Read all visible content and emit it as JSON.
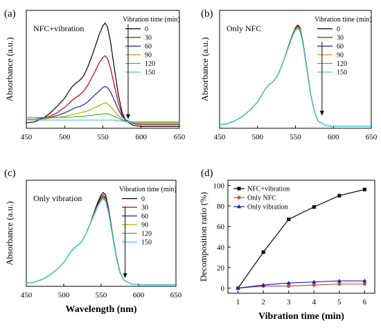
{
  "chart_data": [
    {
      "panel_label": "(a)",
      "type": "line",
      "annotation": "NFC+vibration",
      "legend_title": "Vibration time (min)",
      "ylabel": "Absorbance (a.u.)",
      "xlabel": "",
      "xlim": [
        450,
        650
      ],
      "x_ticks": [
        450,
        500,
        550,
        600,
        650
      ],
      "ylim": [
        0,
        1.3
      ],
      "y_ticks": [],
      "arrow": {
        "x": 583,
        "y_from": 1.15,
        "y_to": 0.1
      },
      "x": [
        450,
        460,
        470,
        480,
        490,
        500,
        505,
        510,
        515,
        520,
        525,
        530,
        535,
        540,
        545,
        550,
        553,
        556,
        560,
        565,
        570,
        575,
        580,
        590,
        600,
        610,
        620,
        650
      ],
      "series": [
        {
          "name": "0",
          "color": "#000000",
          "values": [
            0.06,
            0.07,
            0.1,
            0.16,
            0.24,
            0.33,
            0.4,
            0.46,
            0.5,
            0.53,
            0.58,
            0.67,
            0.78,
            0.9,
            1.03,
            1.13,
            1.16,
            1.12,
            0.95,
            0.66,
            0.38,
            0.18,
            0.08,
            0.03,
            0.02,
            0.02,
            0.02,
            0.02
          ]
        },
        {
          "name": "30",
          "color": "#c00000",
          "values": [
            0.1,
            0.1,
            0.11,
            0.13,
            0.17,
            0.23,
            0.27,
            0.31,
            0.34,
            0.37,
            0.41,
            0.47,
            0.55,
            0.63,
            0.72,
            0.78,
            0.8,
            0.77,
            0.66,
            0.47,
            0.29,
            0.15,
            0.09,
            0.05,
            0.04,
            0.04,
            0.04,
            0.04
          ]
        },
        {
          "name": "60",
          "color": "#2020b0",
          "values": [
            0.1,
            0.1,
            0.11,
            0.12,
            0.14,
            0.17,
            0.19,
            0.21,
            0.23,
            0.24,
            0.26,
            0.29,
            0.33,
            0.37,
            0.41,
            0.45,
            0.46,
            0.45,
            0.4,
            0.31,
            0.21,
            0.13,
            0.09,
            0.06,
            0.05,
            0.05,
            0.05,
            0.05
          ]
        },
        {
          "name": "90",
          "color": "#c8a000",
          "values": [
            0.1,
            0.1,
            0.1,
            0.11,
            0.12,
            0.13,
            0.14,
            0.15,
            0.16,
            0.17,
            0.18,
            0.19,
            0.21,
            0.23,
            0.25,
            0.27,
            0.28,
            0.27,
            0.24,
            0.19,
            0.14,
            0.1,
            0.08,
            0.06,
            0.06,
            0.06,
            0.06,
            0.06
          ]
        },
        {
          "name": "120",
          "color": "#30c030",
          "values": [
            0.12,
            0.12,
            0.12,
            0.12,
            0.12,
            0.12,
            0.12,
            0.12,
            0.13,
            0.13,
            0.13,
            0.14,
            0.14,
            0.15,
            0.15,
            0.16,
            0.16,
            0.16,
            0.15,
            0.13,
            0.11,
            0.09,
            0.08,
            0.07,
            0.07,
            0.07,
            0.07,
            0.07
          ]
        },
        {
          "name": "150",
          "color": "#40c8e8",
          "values": [
            0.09,
            0.09,
            0.09,
            0.09,
            0.09,
            0.09,
            0.09,
            0.09,
            0.09,
            0.09,
            0.09,
            0.09,
            0.09,
            0.09,
            0.09,
            0.09,
            0.09,
            0.09,
            0.09,
            0.09,
            0.08,
            0.08,
            0.07,
            0.06,
            0.05,
            0.05,
            0.05,
            0.05
          ]
        }
      ]
    },
    {
      "panel_label": "(b)",
      "type": "line",
      "annotation": "Only NFC",
      "legend_title": "Vibration time (min)",
      "ylabel": "Absorbance (a.u.)",
      "xlabel": "",
      "xlim": [
        450,
        650
      ],
      "x_ticks": [
        450,
        500,
        550,
        600,
        650
      ],
      "ylim": [
        0,
        1.3
      ],
      "y_ticks": [],
      "arrow": {
        "x": 585,
        "y_from": 0.95,
        "y_to": 0.14
      },
      "x": [
        450,
        460,
        470,
        480,
        490,
        500,
        505,
        510,
        515,
        520,
        525,
        530,
        535,
        540,
        545,
        550,
        553,
        556,
        560,
        565,
        570,
        575,
        580,
        590,
        600,
        610,
        620,
        650
      ],
      "series": [
        {
          "name": "0",
          "color": "#000000",
          "values": [
            0.04,
            0.05,
            0.08,
            0.13,
            0.2,
            0.29,
            0.36,
            0.43,
            0.48,
            0.51,
            0.56,
            0.65,
            0.76,
            0.88,
            1.0,
            1.1,
            1.13,
            1.1,
            0.94,
            0.66,
            0.38,
            0.18,
            0.08,
            0.03,
            0.02,
            0.02,
            0.02,
            0.02
          ]
        },
        {
          "name": "30",
          "color": "#c00000",
          "values": [
            0.04,
            0.05,
            0.08,
            0.13,
            0.2,
            0.29,
            0.36,
            0.43,
            0.48,
            0.51,
            0.56,
            0.65,
            0.76,
            0.89,
            1.01,
            1.11,
            1.14,
            1.11,
            0.95,
            0.67,
            0.38,
            0.18,
            0.08,
            0.03,
            0.02,
            0.02,
            0.02,
            0.02
          ]
        },
        {
          "name": "60",
          "color": "#2020b0",
          "values": [
            0.04,
            0.05,
            0.08,
            0.13,
            0.2,
            0.29,
            0.36,
            0.43,
            0.48,
            0.51,
            0.56,
            0.65,
            0.76,
            0.88,
            1.0,
            1.1,
            1.12,
            1.09,
            0.94,
            0.66,
            0.38,
            0.18,
            0.08,
            0.03,
            0.02,
            0.02,
            0.02,
            0.02
          ]
        },
        {
          "name": "90",
          "color": "#c8a000",
          "values": [
            0.04,
            0.05,
            0.08,
            0.13,
            0.2,
            0.29,
            0.36,
            0.43,
            0.48,
            0.51,
            0.56,
            0.65,
            0.76,
            0.88,
            1.0,
            1.09,
            1.12,
            1.09,
            0.93,
            0.65,
            0.38,
            0.18,
            0.08,
            0.03,
            0.02,
            0.02,
            0.02,
            0.02
          ]
        },
        {
          "name": "120",
          "color": "#30c030",
          "values": [
            0.04,
            0.05,
            0.08,
            0.13,
            0.2,
            0.29,
            0.36,
            0.43,
            0.48,
            0.51,
            0.56,
            0.65,
            0.76,
            0.88,
            0.99,
            1.09,
            1.11,
            1.08,
            0.93,
            0.65,
            0.37,
            0.18,
            0.08,
            0.03,
            0.02,
            0.02,
            0.02,
            0.02
          ]
        },
        {
          "name": "150",
          "color": "#40c8e8",
          "values": [
            0.04,
            0.05,
            0.08,
            0.13,
            0.2,
            0.29,
            0.36,
            0.43,
            0.48,
            0.51,
            0.56,
            0.65,
            0.76,
            0.87,
            0.99,
            1.08,
            1.1,
            1.07,
            0.92,
            0.65,
            0.37,
            0.18,
            0.08,
            0.03,
            0.02,
            0.02,
            0.02,
            0.02
          ]
        }
      ]
    },
    {
      "panel_label": "(c)",
      "type": "line",
      "annotation": "Only vibration",
      "legend_title": "Vibration time (min)",
      "ylabel": "Absorbance (a.u.)",
      "xlabel": "Wavelength (nm)",
      "xlim": [
        450,
        650
      ],
      "x_ticks": [
        450,
        500,
        550,
        600,
        650
      ],
      "ylim": [
        0,
        1.3
      ],
      "y_ticks": [],
      "arrow": {
        "x": 582,
        "y_from": 0.98,
        "y_to": 0.1
      },
      "x": [
        450,
        460,
        470,
        480,
        490,
        500,
        505,
        510,
        515,
        520,
        525,
        530,
        535,
        540,
        545,
        550,
        553,
        556,
        560,
        565,
        570,
        575,
        580,
        590,
        600,
        610,
        620,
        650
      ],
      "series": [
        {
          "name": "0",
          "color": "#000000",
          "values": [
            0.04,
            0.05,
            0.08,
            0.13,
            0.2,
            0.29,
            0.36,
            0.43,
            0.48,
            0.51,
            0.56,
            0.65,
            0.76,
            0.89,
            1.02,
            1.12,
            1.15,
            1.12,
            0.95,
            0.66,
            0.38,
            0.18,
            0.08,
            0.03,
            0.02,
            0.02,
            0.02,
            0.02
          ]
        },
        {
          "name": "30",
          "color": "#c00000",
          "values": [
            0.04,
            0.05,
            0.08,
            0.13,
            0.2,
            0.29,
            0.36,
            0.43,
            0.48,
            0.51,
            0.56,
            0.65,
            0.76,
            0.88,
            1.0,
            1.1,
            1.12,
            1.09,
            0.93,
            0.65,
            0.38,
            0.18,
            0.08,
            0.03,
            0.02,
            0.02,
            0.02,
            0.02
          ]
        },
        {
          "name": "60",
          "color": "#2020b0",
          "values": [
            0.04,
            0.05,
            0.08,
            0.13,
            0.2,
            0.29,
            0.36,
            0.43,
            0.48,
            0.51,
            0.56,
            0.65,
            0.76,
            0.87,
            0.99,
            1.08,
            1.1,
            1.07,
            0.92,
            0.64,
            0.37,
            0.18,
            0.08,
            0.03,
            0.02,
            0.02,
            0.02,
            0.02
          ]
        },
        {
          "name": "90",
          "color": "#c8a000",
          "values": [
            0.04,
            0.05,
            0.08,
            0.13,
            0.2,
            0.29,
            0.36,
            0.43,
            0.48,
            0.51,
            0.56,
            0.65,
            0.76,
            0.87,
            0.98,
            1.07,
            1.09,
            1.06,
            0.91,
            0.64,
            0.37,
            0.18,
            0.08,
            0.03,
            0.02,
            0.02,
            0.02,
            0.02
          ]
        },
        {
          "name": "120",
          "color": "#30c030",
          "values": [
            0.04,
            0.05,
            0.08,
            0.13,
            0.2,
            0.29,
            0.36,
            0.43,
            0.48,
            0.51,
            0.56,
            0.65,
            0.76,
            0.86,
            0.97,
            1.06,
            1.08,
            1.05,
            0.9,
            0.63,
            0.36,
            0.17,
            0.08,
            0.03,
            0.02,
            0.02,
            0.02,
            0.02
          ]
        },
        {
          "name": "150",
          "color": "#40c8e8",
          "values": [
            0.04,
            0.05,
            0.08,
            0.13,
            0.2,
            0.29,
            0.36,
            0.43,
            0.48,
            0.51,
            0.56,
            0.65,
            0.76,
            0.86,
            0.97,
            1.05,
            1.07,
            1.04,
            0.89,
            0.63,
            0.36,
            0.17,
            0.08,
            0.03,
            0.02,
            0.02,
            0.02,
            0.02
          ]
        }
      ]
    },
    {
      "panel_label": "(d)",
      "type": "line",
      "annotation": "",
      "ylabel": "Decomposition ratio (%)",
      "xlabel": "Vibration time (min)",
      "xlim": [
        0.6,
        6.4
      ],
      "x_ticks": [
        1,
        2,
        3,
        4,
        5,
        6
      ],
      "ylim": [
        -5,
        105
      ],
      "y_ticks": [
        0,
        20,
        40,
        60,
        80,
        100
      ],
      "x": [
        1,
        2,
        3,
        4,
        5,
        6
      ],
      "series": [
        {
          "name": "NFC+vibration",
          "color": "#000000",
          "marker": "square",
          "values": [
            0,
            35,
            67,
            79,
            90,
            96
          ]
        },
        {
          "name": "Only NFC",
          "color": "#c0504d",
          "marker": "circle",
          "values": [
            0,
            2,
            2,
            3,
            4,
            4
          ]
        },
        {
          "name": "Only vibration",
          "color": "#1c1cb0",
          "marker": "triangle",
          "values": [
            0,
            3,
            5,
            6,
            7,
            7
          ]
        }
      ]
    }
  ]
}
